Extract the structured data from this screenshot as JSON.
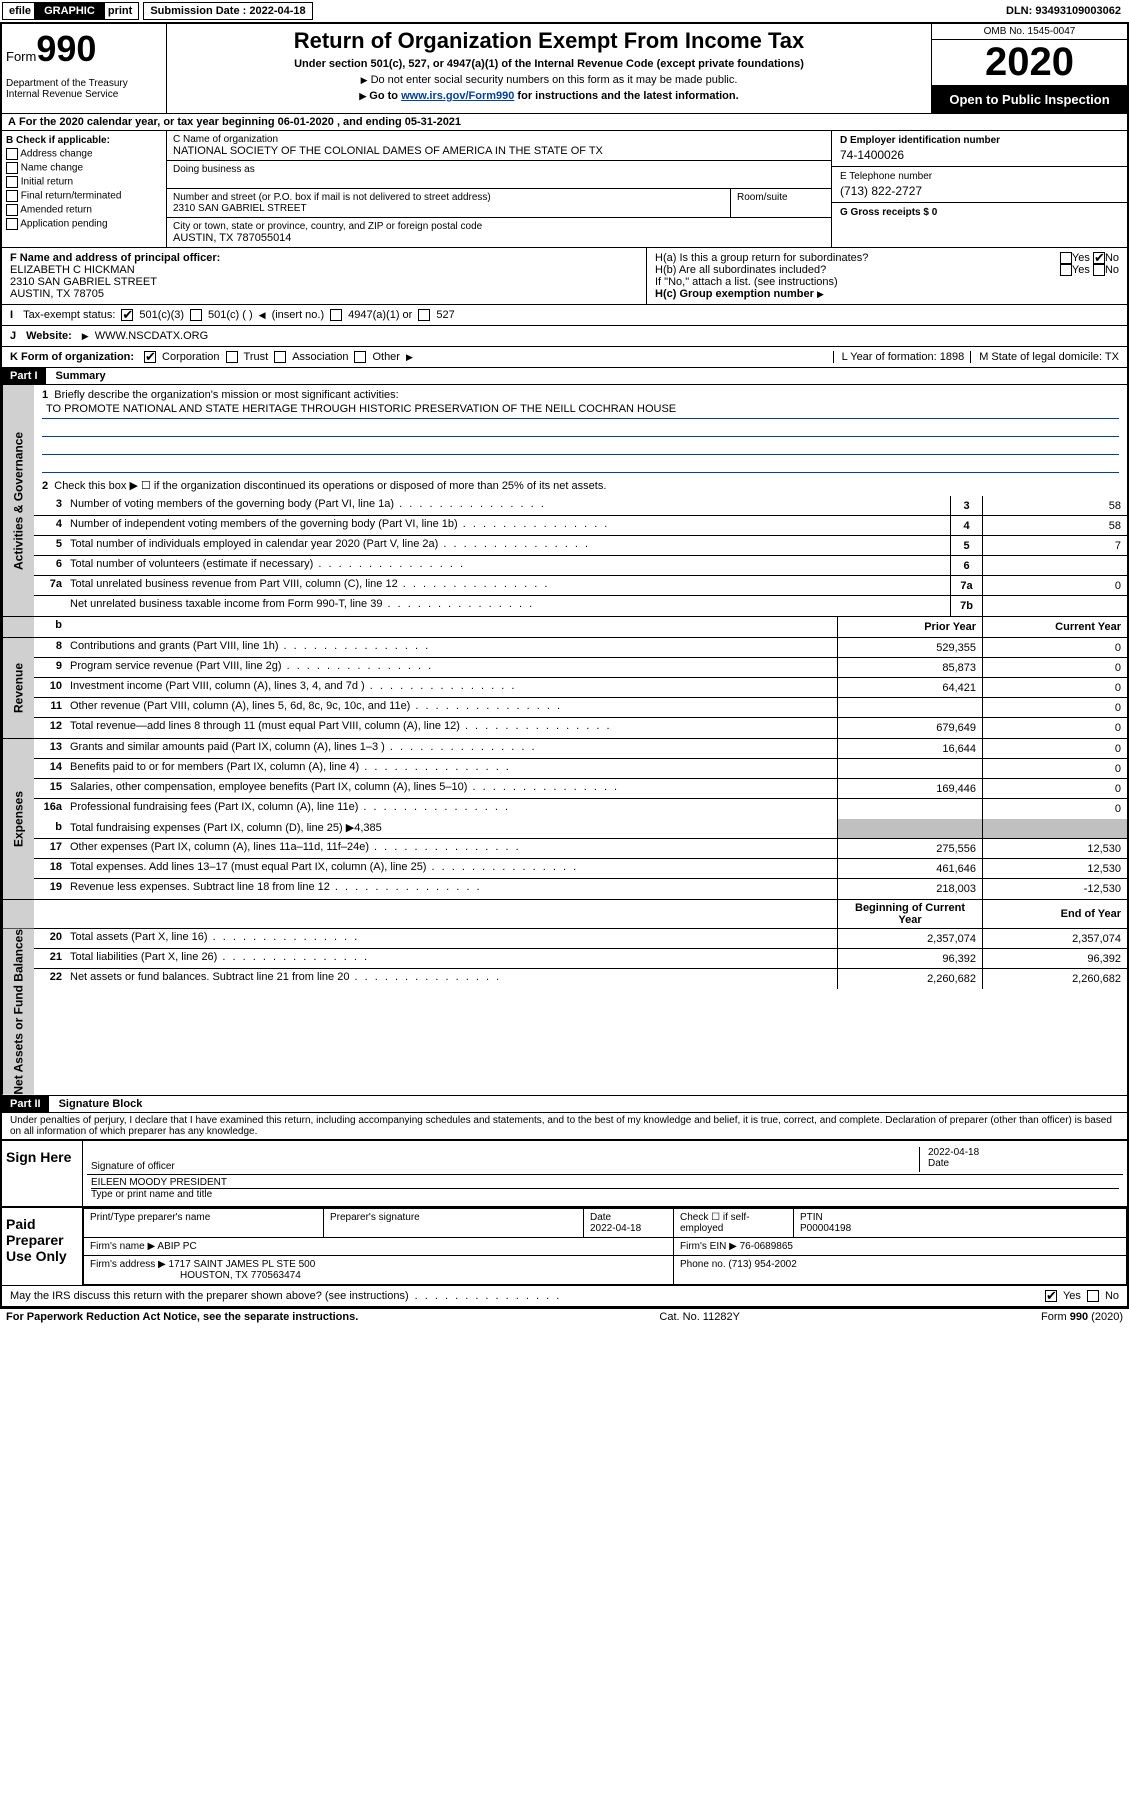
{
  "top": {
    "efile": "efile",
    "graphic": "GRAPHIC",
    "print": "print",
    "submission_label": "Submission Date : 2022-04-18",
    "dln": "DLN: 93493109003062"
  },
  "header": {
    "form_word": "Form",
    "form_num": "990",
    "dept": "Department of the Treasury\nInternal Revenue Service",
    "title": "Return of Organization Exempt From Income Tax",
    "subtitle": "Under section 501(c), 527, or 4947(a)(1) of the Internal Revenue Code (except private foundations)",
    "note1": "Do not enter social security numbers on this form as it may be made public.",
    "note2_pre": "Go to ",
    "note2_link": "www.irs.gov/Form990",
    "note2_post": " for instructions and the latest information.",
    "omb": "OMB No. 1545-0047",
    "year": "2020",
    "open": "Open to Public Inspection"
  },
  "period": "For the 2020 calendar year, or tax year beginning 06-01-2020    , and ending 05-31-2021",
  "section_b": {
    "label": "B Check if applicable:",
    "items": [
      "Address change",
      "Name change",
      "Initial return",
      "Final return/terminated",
      "Amended return",
      "Application pending"
    ]
  },
  "section_c": {
    "name_label": "C Name of organization",
    "name": "NATIONAL SOCIETY OF THE COLONIAL DAMES OF AMERICA IN THE STATE OF TX",
    "dba_label": "Doing business as",
    "street_label": "Number and street (or P.O. box if mail is not delivered to street address)",
    "street": "2310 SAN GABRIEL STREET",
    "room_label": "Room/suite",
    "city_label": "City or town, state or province, country, and ZIP or foreign postal code",
    "city": "AUSTIN, TX  787055014"
  },
  "section_d": {
    "label": "D Employer identification number",
    "val": "74-1400026"
  },
  "section_e": {
    "label": "E Telephone number",
    "val": "(713) 822-2727"
  },
  "section_g": {
    "label": "G Gross receipts $ 0"
  },
  "section_f": {
    "label": "F  Name and address of principal officer:",
    "name": "ELIZABETH C HICKMAN",
    "street": "2310 SAN GABRIEL STREET",
    "city": "AUSTIN, TX  78705"
  },
  "section_h": {
    "a": "H(a)  Is this a group return for subordinates?",
    "b": "H(b)  Are all subordinates included?",
    "b_note": "If \"No,\" attach a list. (see instructions)",
    "c": "H(c)  Group exemption number",
    "yes": "Yes",
    "no": "No"
  },
  "tax_exempt": {
    "label": "Tax-exempt status:",
    "opt1": "501(c)(3)",
    "opt2": "501(c) (   )",
    "opt2_note": "(insert no.)",
    "opt3": "4947(a)(1) or",
    "opt4": "527"
  },
  "website": {
    "label": "Website:",
    "val": "WWW.NSCDATX.ORG"
  },
  "section_k": {
    "label": "K Form of organization:",
    "opts": [
      "Corporation",
      "Trust",
      "Association",
      "Other"
    ]
  },
  "section_l": {
    "label": "L Year of formation: 1898"
  },
  "section_m": {
    "label": "M State of legal domicile: TX"
  },
  "part1": {
    "header": "Part I",
    "title": "Summary",
    "line1": "Briefly describe the organization's mission or most significant activities:",
    "mission": "TO PROMOTE NATIONAL AND STATE HERITAGE THROUGH HISTORIC PRESERVATION OF THE NEILL COCHRAN HOUSE",
    "line2": "Check this box ▶ ☐  if the organization discontinued its operations or disposed of more than 25% of its net assets.",
    "lines_simple": [
      {
        "n": "3",
        "t": "Number of voting members of the governing body (Part VI, line 1a)",
        "box": "3",
        "v": "58"
      },
      {
        "n": "4",
        "t": "Number of independent voting members of the governing body (Part VI, line 1b)",
        "box": "4",
        "v": "58"
      },
      {
        "n": "5",
        "t": "Total number of individuals employed in calendar year 2020 (Part V, line 2a)",
        "box": "5",
        "v": "7"
      },
      {
        "n": "6",
        "t": "Total number of volunteers (estimate if necessary)",
        "box": "6",
        "v": ""
      },
      {
        "n": "7a",
        "t": "Total unrelated business revenue from Part VIII, column (C), line 12",
        "box": "7a",
        "v": "0"
      },
      {
        "n": "",
        "t": "Net unrelated business taxable income from Form 990-T, line 39",
        "box": "7b",
        "v": ""
      }
    ],
    "col_prior": "Prior Year",
    "col_current": "Current Year",
    "revenue": [
      {
        "n": "8",
        "t": "Contributions and grants (Part VIII, line 1h)",
        "p": "529,355",
        "c": "0"
      },
      {
        "n": "9",
        "t": "Program service revenue (Part VIII, line 2g)",
        "p": "85,873",
        "c": "0"
      },
      {
        "n": "10",
        "t": "Investment income (Part VIII, column (A), lines 3, 4, and 7d )",
        "p": "64,421",
        "c": "0"
      },
      {
        "n": "11",
        "t": "Other revenue (Part VIII, column (A), lines 5, 6d, 8c, 9c, 10c, and 11e)",
        "p": "",
        "c": "0"
      },
      {
        "n": "12",
        "t": "Total revenue—add lines 8 through 11 (must equal Part VIII, column (A), line 12)",
        "p": "679,649",
        "c": "0"
      }
    ],
    "expenses": [
      {
        "n": "13",
        "t": "Grants and similar amounts paid (Part IX, column (A), lines 1–3 )",
        "p": "16,644",
        "c": "0"
      },
      {
        "n": "14",
        "t": "Benefits paid to or for members (Part IX, column (A), line 4)",
        "p": "",
        "c": "0"
      },
      {
        "n": "15",
        "t": "Salaries, other compensation, employee benefits (Part IX, column (A), lines 5–10)",
        "p": "169,446",
        "c": "0"
      },
      {
        "n": "16a",
        "t": "Professional fundraising fees (Part IX, column (A), line 11e)",
        "p": "",
        "c": "0"
      }
    ],
    "line16b": "Total fundraising expenses (Part IX, column (D), line 25) ▶4,385",
    "expenses2": [
      {
        "n": "17",
        "t": "Other expenses (Part IX, column (A), lines 11a–11d, 11f–24e)",
        "p": "275,556",
        "c": "12,530"
      },
      {
        "n": "18",
        "t": "Total expenses. Add lines 13–17 (must equal Part IX, column (A), line 25)",
        "p": "461,646",
        "c": "12,530"
      },
      {
        "n": "19",
        "t": "Revenue less expenses. Subtract line 18 from line 12",
        "p": "218,003",
        "c": "-12,530"
      }
    ],
    "col_begin": "Beginning of Current Year",
    "col_end": "End of Year",
    "netassets": [
      {
        "n": "20",
        "t": "Total assets (Part X, line 16)",
        "p": "2,357,074",
        "c": "2,357,074"
      },
      {
        "n": "21",
        "t": "Total liabilities (Part X, line 26)",
        "p": "96,392",
        "c": "96,392"
      },
      {
        "n": "22",
        "t": "Net assets or fund balances. Subtract line 21 from line 20",
        "p": "2,260,682",
        "c": "2,260,682"
      }
    ],
    "vtabs": {
      "gov": "Activities & Governance",
      "rev": "Revenue",
      "exp": "Expenses",
      "net": "Net Assets or Fund Balances"
    }
  },
  "part2": {
    "header": "Part II",
    "title": "Signature Block",
    "penalty": "Under penalties of perjury, I declare that I have examined this return, including accompanying schedules and statements, and to the best of my knowledge and belief, it is true, correct, and complete. Declaration of preparer (other than officer) is based on all information of which preparer has any knowledge.",
    "sign_here": "Sign Here",
    "sig_officer": "Signature of officer",
    "sig_date": "2022-04-18",
    "sig_date_label": "Date",
    "officer_name": "EILEEN MOODY PRESIDENT",
    "officer_label": "Type or print name and title",
    "paid": "Paid Preparer Use Only",
    "prep_name_label": "Print/Type preparer's name",
    "prep_sig_label": "Preparer's signature",
    "prep_date_label": "Date",
    "prep_date": "2022-04-18",
    "prep_check": "Check ☐  if self-employed",
    "ptin_label": "PTIN",
    "ptin": "P00004198",
    "firm_name_label": "Firm's name     ▶",
    "firm_name": "ABIP PC",
    "firm_ein_label": "Firm's EIN ▶",
    "firm_ein": "76-0689865",
    "firm_addr_label": "Firm's address ▶",
    "firm_addr1": "1717 SAINT JAMES PL STE 500",
    "firm_addr2": "HOUSTON, TX  770563474",
    "phone_label": "Phone no.",
    "phone": "(713) 954-2002",
    "discuss": "May the IRS discuss this return with the preparer shown above? (see instructions)",
    "yes": "Yes",
    "no": "No"
  },
  "footer": {
    "left": "For Paperwork Reduction Act Notice, see the separate instructions.",
    "mid": "Cat. No. 11282Y",
    "right": "Form 990 (2020)"
  }
}
